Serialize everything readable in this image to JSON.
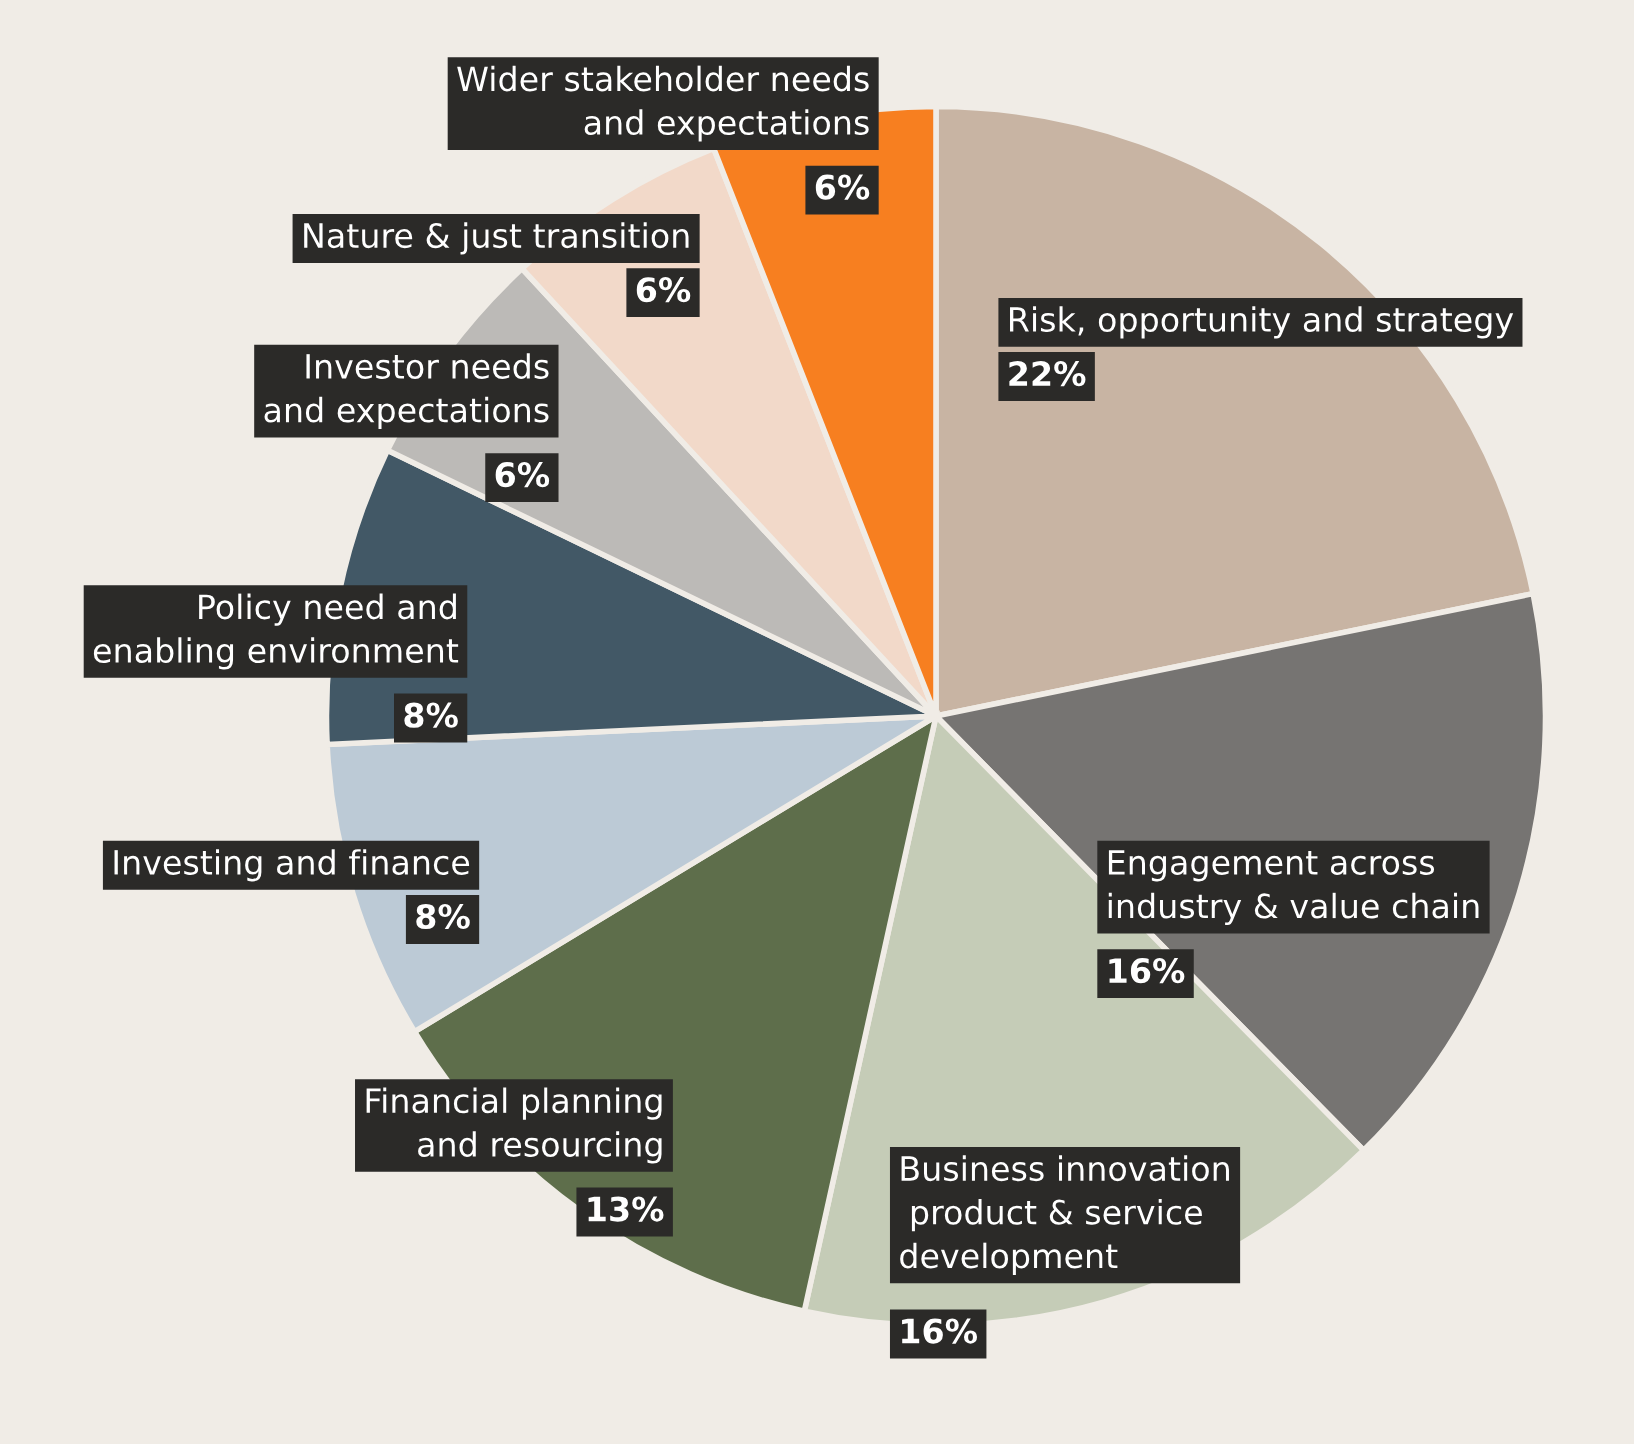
{
  "chart_data": {
    "type": "pie",
    "categories": [
      "Risk, opportunity and strategy",
      "Engagement across\nindustry & value chain",
      "Business innovation\n product & service\ndevelopment",
      "Financial planning\nand resourcing",
      "Investing and finance",
      "Policy need and\nenabling environment",
      "Investor needs\nand expectations",
      "Nature & just transition",
      "Wider stakeholder needs\nand expectations"
    ],
    "values": [
      22,
      16,
      16,
      13,
      8,
      8,
      6,
      6,
      6
    ],
    "value_labels": [
      "22%",
      "16%",
      "16%",
      "13%",
      "8%",
      "8%",
      "6%",
      "6%",
      "6%"
    ],
    "colors": [
      "#c8b4a3",
      "#767472",
      "#c5ccb7",
      "#5e6e4b",
      "#bccad6",
      "#425866",
      "#bcbab7",
      "#f2d9c9",
      "#f77f20"
    ]
  }
}
